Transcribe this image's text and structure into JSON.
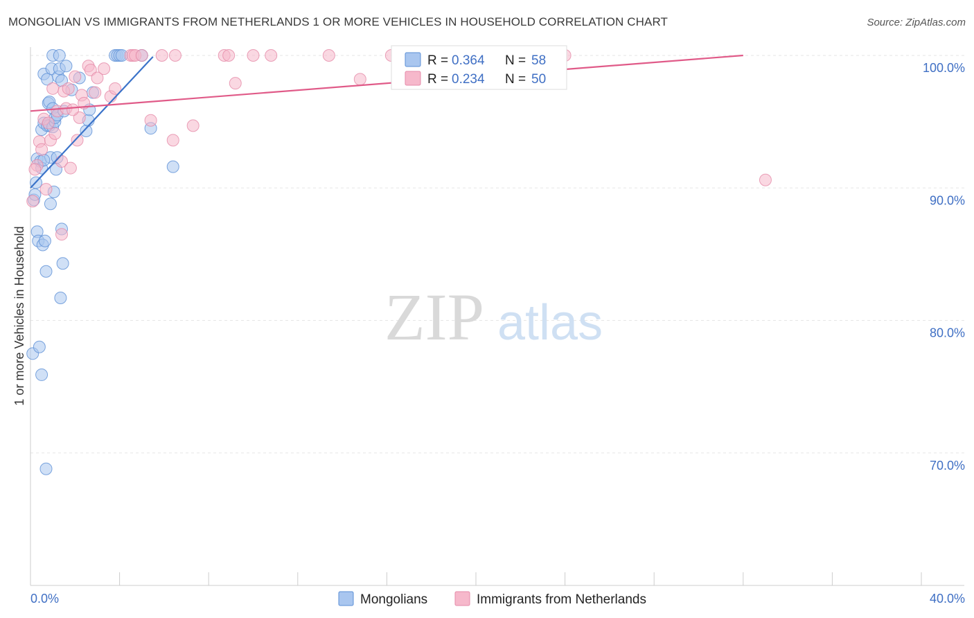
{
  "title": "MONGOLIAN VS IMMIGRANTS FROM NETHERLANDS 1 OR MORE VEHICLES IN HOUSEHOLD CORRELATION CHART",
  "source": "Source: ZipAtlas.com",
  "watermark": {
    "zip": "ZIP",
    "atlas": "atlas"
  },
  "legend": {
    "r_label": "R = ",
    "n_label": "N = ",
    "rows": [
      {
        "r": "0.364",
        "n": "58",
        "color": "#a9c6ef",
        "stroke": "#5b8fd6"
      },
      {
        "r": "0.234",
        "n": "50",
        "color": "#f6b8cb",
        "stroke": "#e58aa8"
      }
    ]
  },
  "bottom_legend": [
    "Mongolians",
    "Immigrants from Netherlands"
  ],
  "chart_data": {
    "type": "scatter",
    "title": "MONGOLIAN VS IMMIGRANTS FROM NETHERLANDS 1 OR MORE VEHICLES IN HOUSEHOLD CORRELATION CHART",
    "xlabel": "",
    "ylabel": "1 or more Vehicles in Household",
    "xlim": [
      0,
      40
    ],
    "ylim": [
      60,
      100
    ],
    "x_tick_labels": [
      "0.0%",
      "40.0%"
    ],
    "y_ticks": [
      70,
      80,
      90,
      100
    ],
    "y_tick_labels": [
      "70.0%",
      "80.0%",
      "90.0%",
      "100.0%"
    ],
    "grid": true,
    "legend_position": "top-center",
    "series": [
      {
        "name": "Mongolians",
        "color": "#a9c6ef",
        "stroke": "#5b8fd6",
        "trend": {
          "x": [
            0.0,
            5.5
          ],
          "y": [
            90.0,
            99.9
          ],
          "color": "#3b73c9"
        },
        "points": [
          [
            0.1,
            77.5
          ],
          [
            0.15,
            89.1
          ],
          [
            0.2,
            89.5
          ],
          [
            0.25,
            90.4
          ],
          [
            0.3,
            92.2
          ],
          [
            0.3,
            86.7
          ],
          [
            0.35,
            86.0
          ],
          [
            0.4,
            78.0
          ],
          [
            0.45,
            92.0
          ],
          [
            0.5,
            94.4
          ],
          [
            0.5,
            91.5
          ],
          [
            0.5,
            75.9
          ],
          [
            0.55,
            85.7
          ],
          [
            0.6,
            94.9
          ],
          [
            0.6,
            98.6
          ],
          [
            0.65,
            86.0
          ],
          [
            0.7,
            68.8
          ],
          [
            0.7,
            83.7
          ],
          [
            0.75,
            94.7
          ],
          [
            0.75,
            98.2
          ],
          [
            0.8,
            96.4
          ],
          [
            0.85,
            96.5
          ],
          [
            0.85,
            94.7
          ],
          [
            0.9,
            88.8
          ],
          [
            0.9,
            92.3
          ],
          [
            0.95,
            99.0
          ],
          [
            1.0,
            100.0
          ],
          [
            1.0,
            94.6
          ],
          [
            1.0,
            96.0
          ],
          [
            1.05,
            89.7
          ],
          [
            1.1,
            95.0
          ],
          [
            1.1,
            95.3
          ],
          [
            1.15,
            91.4
          ],
          [
            1.2,
            95.5
          ],
          [
            1.25,
            98.4
          ],
          [
            1.3,
            100.0
          ],
          [
            1.3,
            99.0
          ],
          [
            1.35,
            81.7
          ],
          [
            1.4,
            98.1
          ],
          [
            1.4,
            86.9
          ],
          [
            1.45,
            84.3
          ],
          [
            1.5,
            95.8
          ],
          [
            1.6,
            99.2
          ],
          [
            1.85,
            97.4
          ],
          [
            2.2,
            98.3
          ],
          [
            2.5,
            94.3
          ],
          [
            2.6,
            95.1
          ],
          [
            2.65,
            95.9
          ],
          [
            2.8,
            97.2
          ],
          [
            3.8,
            100.0
          ],
          [
            3.9,
            100.0
          ],
          [
            4.0,
            100.0
          ],
          [
            4.1,
            100.0
          ],
          [
            5.0,
            100.0
          ],
          [
            5.4,
            94.5
          ],
          [
            6.4,
            91.6
          ],
          [
            1.2,
            92.3
          ],
          [
            0.6,
            92.1
          ]
        ]
      },
      {
        "name": "Immigrants from Netherlands",
        "color": "#f6b8cb",
        "stroke": "#e58aa8",
        "trend": {
          "x": [
            0.0,
            32.0
          ],
          "y": [
            95.8,
            100.0
          ],
          "color": "#e05a88"
        },
        "points": [
          [
            0.1,
            89.0
          ],
          [
            0.3,
            91.7
          ],
          [
            0.4,
            93.5
          ],
          [
            0.5,
            92.9
          ],
          [
            0.6,
            95.2
          ],
          [
            0.7,
            89.9
          ],
          [
            0.8,
            94.9
          ],
          [
            0.9,
            93.6
          ],
          [
            1.0,
            97.5
          ],
          [
            1.1,
            94.1
          ],
          [
            1.2,
            95.8
          ],
          [
            1.4,
            92.0
          ],
          [
            1.4,
            86.5
          ],
          [
            1.5,
            97.3
          ],
          [
            1.6,
            96.0
          ],
          [
            1.7,
            97.5
          ],
          [
            1.8,
            91.5
          ],
          [
            2.0,
            98.4
          ],
          [
            2.1,
            93.6
          ],
          [
            2.2,
            95.3
          ],
          [
            2.3,
            97.0
          ],
          [
            2.4,
            96.4
          ],
          [
            2.6,
            99.2
          ],
          [
            2.7,
            98.9
          ],
          [
            2.9,
            97.2
          ],
          [
            3.0,
            98.3
          ],
          [
            3.3,
            99.0
          ],
          [
            3.6,
            96.9
          ],
          [
            3.8,
            97.5
          ],
          [
            4.5,
            100.0
          ],
          [
            4.6,
            100.0
          ],
          [
            4.7,
            100.0
          ],
          [
            5.0,
            100.0
          ],
          [
            5.4,
            95.1
          ],
          [
            5.9,
            100.0
          ],
          [
            6.4,
            93.6
          ],
          [
            6.5,
            100.0
          ],
          [
            7.3,
            94.7
          ],
          [
            8.7,
            100.0
          ],
          [
            8.9,
            100.0
          ],
          [
            9.2,
            97.9
          ],
          [
            10.0,
            100.0
          ],
          [
            10.8,
            100.0
          ],
          [
            13.4,
            100.0
          ],
          [
            14.8,
            98.2
          ],
          [
            16.2,
            100.0
          ],
          [
            24.0,
            100.0
          ],
          [
            33.0,
            90.6
          ],
          [
            0.2,
            91.4
          ],
          [
            1.9,
            95.9
          ]
        ]
      }
    ]
  }
}
